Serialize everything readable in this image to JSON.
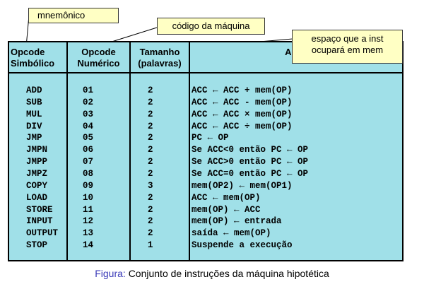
{
  "callouts": {
    "mnemonico": "mnemônico",
    "codigo": "código da máquina",
    "espaco_line1": "espaço que a inst",
    "espaco_line2": "ocupará em mem"
  },
  "headers": {
    "opcode_simbolico": [
      "Opcode",
      "Simbólico"
    ],
    "opcode_numerico": [
      "Opcode",
      "Numérico"
    ],
    "tamanho": [
      "Tamanho",
      "(palavras)"
    ],
    "acao": "Ação"
  },
  "rows": [
    {
      "mnemonic": "ADD",
      "opcode": "01",
      "size": "2",
      "action": "ACC ← ACC + mem(OP)"
    },
    {
      "mnemonic": "SUB",
      "opcode": "02",
      "size": "2",
      "action": "ACC ← ACC - mem(OP)"
    },
    {
      "mnemonic": "MUL",
      "opcode": "03",
      "size": "2",
      "action": "ACC ← ACC × mem(OP)"
    },
    {
      "mnemonic": "DIV",
      "opcode": "04",
      "size": "2",
      "action": "ACC ← ACC ÷ mem(OP)"
    },
    {
      "mnemonic": "JMP",
      "opcode": "05",
      "size": "2",
      "action": "PC ← OP"
    },
    {
      "mnemonic": "JMPN",
      "opcode": "06",
      "size": "2",
      "action": "Se ACC<0 então PC ← OP"
    },
    {
      "mnemonic": "JMPP",
      "opcode": "07",
      "size": "2",
      "action": "Se ACC>0 então PC ← OP"
    },
    {
      "mnemonic": "JMPZ",
      "opcode": "08",
      "size": "2",
      "action": "Se ACC=0 então PC ← OP"
    },
    {
      "mnemonic": "COPY",
      "opcode": "09",
      "size": "3",
      "action": "mem(OP2) ← mem(OP1)"
    },
    {
      "mnemonic": "LOAD",
      "opcode": "10",
      "size": "2",
      "action": "ACC ← mem(OP)"
    },
    {
      "mnemonic": "STORE",
      "opcode": "11",
      "size": "2",
      "action": "mem(OP) ← ACC"
    },
    {
      "mnemonic": "INPUT",
      "opcode": "12",
      "size": "2",
      "action": "mem(OP) ← entrada"
    },
    {
      "mnemonic": "OUTPUT",
      "opcode": "13",
      "size": "2",
      "action": "saída ← mem(OP)"
    },
    {
      "mnemonic": "STOP",
      "opcode": "14",
      "size": "1",
      "action": "Suspende a execução"
    }
  ],
  "caption": {
    "label": "Figura:",
    "text": "Conjunto de instruções da máquina hipotética"
  }
}
